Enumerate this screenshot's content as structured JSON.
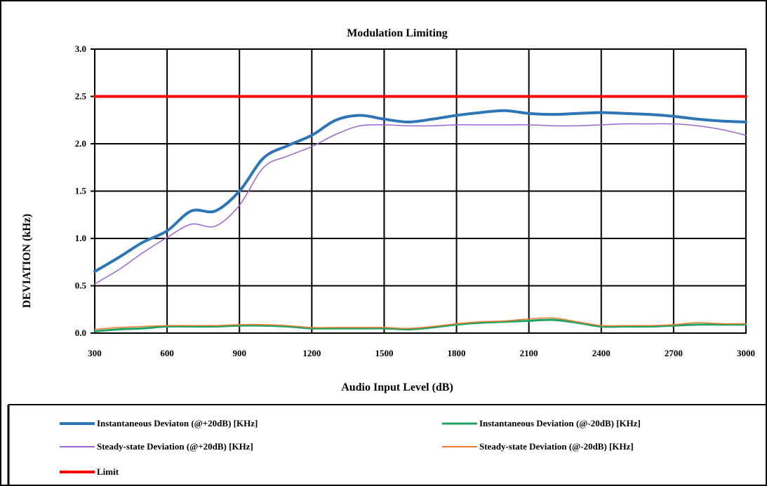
{
  "chart_data": {
    "type": "line",
    "title": "Modulation Limiting",
    "xlabel": "Audio Input Level (dB)",
    "ylabel": "DEVIATION (kHz)",
    "xlim": [
      300,
      3000
    ],
    "ylim": [
      0,
      3
    ],
    "x_ticks": [
      "300",
      "600",
      "900",
      "1200",
      "1500",
      "1800",
      "2100",
      "2400",
      "2700",
      "3000"
    ],
    "y_ticks": [
      "0.0",
      "0.5",
      "1.0",
      "1.5",
      "2.0",
      "2.5",
      "3.0"
    ],
    "grid": true,
    "legend_position": "bottom",
    "series": [
      {
        "name": "Instantaneous Deviaton (@+20dB) [KHz]",
        "color": "#2E75B6",
        "x": [
          300,
          400,
          500,
          600,
          700,
          800,
          900,
          1000,
          1100,
          1200,
          1300,
          1400,
          1500,
          1600,
          1700,
          1800,
          1900,
          2000,
          2100,
          2200,
          2300,
          2400,
          2500,
          2600,
          2700,
          2800,
          2900,
          3000
        ],
        "y": [
          0.65,
          0.8,
          0.96,
          1.08,
          1.29,
          1.29,
          1.5,
          1.85,
          1.98,
          2.09,
          2.25,
          2.3,
          2.26,
          2.23,
          2.26,
          2.3,
          2.33,
          2.35,
          2.32,
          2.31,
          2.32,
          2.33,
          2.32,
          2.31,
          2.29,
          2.26,
          2.24,
          2.23
        ]
      },
      {
        "name": "Instantaneous Deviation (@-20dB) [KHz]",
        "color": "#21A366",
        "x": [
          300,
          400,
          500,
          600,
          700,
          800,
          900,
          1000,
          1100,
          1200,
          1300,
          1400,
          1500,
          1600,
          1700,
          1800,
          1900,
          2000,
          2100,
          2200,
          2300,
          2400,
          2500,
          2600,
          2700,
          2800,
          2900,
          3000
        ],
        "y": [
          0.02,
          0.04,
          0.05,
          0.07,
          0.07,
          0.07,
          0.08,
          0.08,
          0.07,
          0.05,
          0.05,
          0.05,
          0.05,
          0.04,
          0.06,
          0.09,
          0.11,
          0.12,
          0.13,
          0.14,
          0.11,
          0.07,
          0.07,
          0.07,
          0.08,
          0.09,
          0.09,
          0.09
        ]
      },
      {
        "name": "Steady-state Deviation (@+20dB) [KHz]",
        "color": "#9966CC",
        "x": [
          300,
          400,
          500,
          600,
          700,
          800,
          900,
          1000,
          1100,
          1200,
          1300,
          1400,
          1500,
          1600,
          1700,
          1800,
          1900,
          2000,
          2100,
          2200,
          2300,
          2400,
          2500,
          2600,
          2700,
          2800,
          2900,
          3000
        ],
        "y": [
          0.52,
          0.67,
          0.85,
          1.01,
          1.15,
          1.13,
          1.35,
          1.75,
          1.87,
          1.97,
          2.1,
          2.19,
          2.2,
          2.19,
          2.19,
          2.2,
          2.2,
          2.2,
          2.2,
          2.19,
          2.19,
          2.2,
          2.21,
          2.21,
          2.21,
          2.19,
          2.15,
          2.09
        ]
      },
      {
        "name": "Steady-state Deviation (@-20dB) [KHz]",
        "color": "#ED7D31",
        "x": [
          300,
          400,
          500,
          600,
          700,
          800,
          900,
          1000,
          1100,
          1200,
          1300,
          1400,
          1500,
          1600,
          1700,
          1800,
          1900,
          2000,
          2100,
          2200,
          2300,
          2400,
          2500,
          2600,
          2700,
          2800,
          2900,
          3000
        ],
        "y": [
          0.04,
          0.06,
          0.07,
          0.08,
          0.08,
          0.08,
          0.09,
          0.09,
          0.08,
          0.06,
          0.06,
          0.06,
          0.06,
          0.05,
          0.07,
          0.1,
          0.12,
          0.13,
          0.15,
          0.16,
          0.12,
          0.08,
          0.08,
          0.08,
          0.09,
          0.11,
          0.1,
          0.1
        ]
      },
      {
        "name": "Limit",
        "color": "#FF0000",
        "x": [
          300,
          3000
        ],
        "y": [
          2.5,
          2.5
        ]
      }
    ]
  }
}
